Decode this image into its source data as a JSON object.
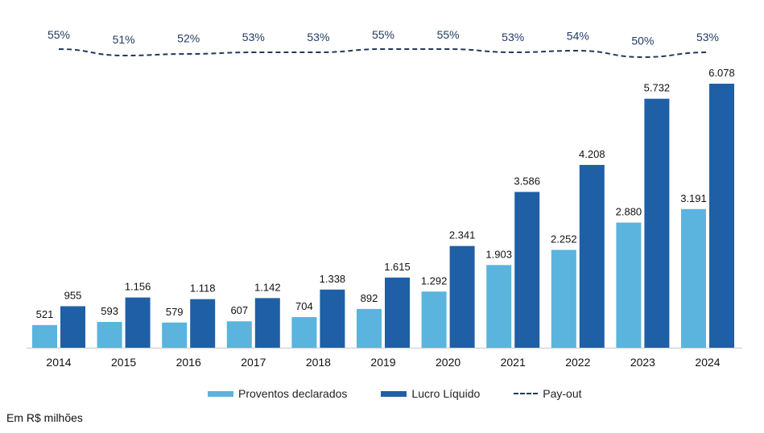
{
  "chart_data": {
    "type": "bar",
    "categories": [
      "2014",
      "2015",
      "2016",
      "2017",
      "2018",
      "2019",
      "2020",
      "2021",
      "2022",
      "2023",
      "2024"
    ],
    "series": [
      {
        "name": "Proventos declarados",
        "values": [
          521,
          593,
          579,
          607,
          704,
          892,
          1292,
          1903,
          2252,
          2880,
          3191
        ],
        "labels": [
          "521",
          "593",
          "579",
          "607",
          "704",
          "892",
          "1.292",
          "1.903",
          "2.252",
          "2.880",
          "3.191"
        ],
        "color": "#5ab4dd"
      },
      {
        "name": "Lucro Líquido",
        "values": [
          955,
          1156,
          1118,
          1142,
          1338,
          1615,
          2341,
          3586,
          4208,
          5732,
          6078
        ],
        "labels": [
          "955",
          "1.156",
          "1.118",
          "1.142",
          "1.338",
          "1.615",
          "2.341",
          "3.586",
          "4.208",
          "5.732",
          "6.078"
        ],
        "color": "#1f5fa6"
      }
    ],
    "line": {
      "name": "Pay-out",
      "values": [
        55,
        51,
        52,
        53,
        53,
        55,
        55,
        53,
        54,
        50,
        53
      ],
      "labels": [
        "55%",
        "51%",
        "52%",
        "53%",
        "53%",
        "55%",
        "55%",
        "53%",
        "54%",
        "50%",
        "53%"
      ],
      "color": "#1f3a5f"
    },
    "ylim": [
      0,
      6078
    ],
    "grid": false,
    "legend_position": "bottom"
  },
  "note": "Em R$ milhões"
}
